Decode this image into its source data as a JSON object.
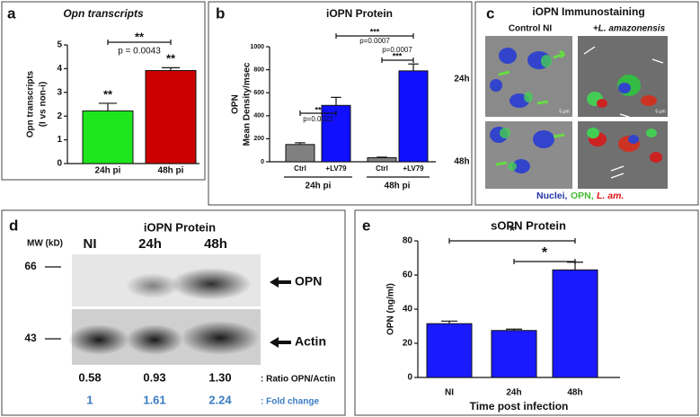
{
  "chart_data": [
    {
      "type": "bar",
      "panel": "a",
      "title": "Opn transcripts",
      "ylabel": [
        "Opn transcripts",
        "(I vs non-i)"
      ],
      "categories": [
        "24h pi",
        "48h pi"
      ],
      "values": [
        2.22,
        3.92
      ],
      "errors": [
        0.32,
        0.12
      ],
      "colors": [
        "#1ee61e",
        "#cc0000"
      ],
      "ylim": [
        0,
        5
      ],
      "yticks": [
        0,
        1,
        2,
        3,
        4,
        5
      ],
      "annotations": [
        "**",
        "p = 0.0043",
        "**",
        "**"
      ]
    },
    {
      "type": "bar",
      "panel": "b",
      "title": "iOPN Protein",
      "ylabel": [
        "OPN",
        "Mean Density/msec"
      ],
      "categories": [
        "Ctrl",
        "+LV79",
        "Ctrl",
        "+LV79"
      ],
      "groups": [
        "24h pi",
        "48h pi"
      ],
      "values": [
        150,
        490,
        35,
        790
      ],
      "errors": [
        15,
        70,
        5,
        60
      ],
      "colors": [
        "#808080",
        "#1010ff",
        "#808080",
        "#1010ff"
      ],
      "ylim": [
        0,
        1000
      ],
      "yticks": [
        0,
        200,
        400,
        600,
        800,
        1000
      ],
      "annotations": [
        "**",
        "p=0.0022",
        "***",
        "p=0.0007",
        "***",
        "p=0.0007"
      ]
    },
    {
      "type": "bar",
      "panel": "e",
      "title": "sOPN Protein",
      "ylabel": [
        "OPN (ng/ml)"
      ],
      "xlabel": "Time post infection",
      "categories": [
        "NI",
        "24h",
        "48h"
      ],
      "values": [
        31.5,
        27.5,
        63
      ],
      "errors": [
        1.5,
        0.8,
        4.5
      ],
      "colors": [
        "#1a1aff",
        "#1a1aff",
        "#1a1aff"
      ],
      "ylim": [
        0,
        80
      ],
      "yticks": [
        0,
        20,
        40,
        60,
        80
      ],
      "annotations": [
        "*",
        "*"
      ]
    }
  ],
  "immunostaining": {
    "panel": "c",
    "title": "iOPN Immunostaining",
    "columns": [
      "Control NI",
      "+L. amazonensis"
    ],
    "rows": [
      "24h",
      "48h"
    ],
    "scale": "5 µm",
    "legend": [
      "Nuclei,",
      "OPN,",
      "L. am."
    ]
  },
  "western_blot": {
    "panel": "d",
    "title": "iOPN Protein",
    "mw_label": "MW (kD)",
    "lanes": [
      "NI",
      "24h",
      "48h"
    ],
    "markers": [
      "66",
      "43"
    ],
    "bands": [
      "OPN",
      "Actin"
    ],
    "ratio": [
      "0.58",
      "0.93",
      "1.30"
    ],
    "ratio_label": ": Ratio OPN/Actin",
    "fold": [
      "1",
      "1.61",
      "2.24"
    ],
    "fold_label": ": Fold change"
  }
}
